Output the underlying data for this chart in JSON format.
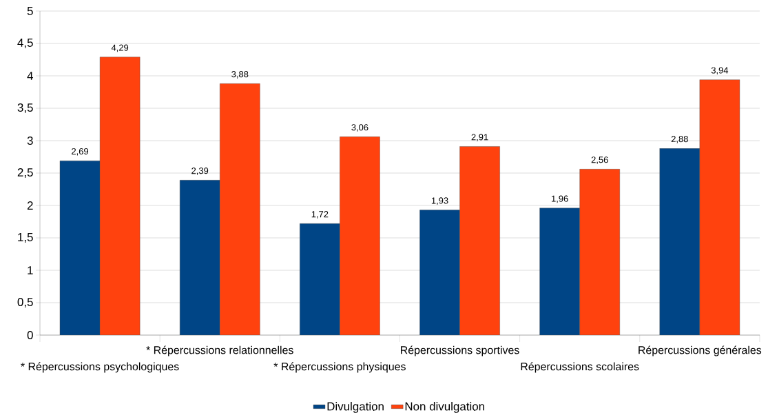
{
  "chart_data": {
    "type": "bar",
    "categories": [
      "* Répercussions psychologiques",
      "* Répercussions relationnelles",
      "* Répercussions physiques",
      "Répercussions sportives",
      "Répercussions scolaires",
      "Répercussions générales"
    ],
    "series": [
      {
        "name": "Divulgation",
        "color": "#004586",
        "values": [
          2.69,
          2.39,
          1.72,
          1.93,
          1.96,
          2.88
        ],
        "value_labels": [
          "2,69",
          "2,39",
          "1,72",
          "1,93",
          "1,96",
          "2,88"
        ]
      },
      {
        "name": "Non divulgation",
        "color": "#ff420e",
        "values": [
          4.29,
          3.88,
          3.06,
          2.91,
          2.56,
          3.94
        ],
        "value_labels": [
          "4,29",
          "3,88",
          "3,06",
          "2,91",
          "2,56",
          "3,94"
        ]
      }
    ],
    "ylim": [
      0,
      5
    ],
    "yticks": [
      0,
      {
        "value": 0.5,
        "label": "0,5"
      },
      1,
      {
        "value": 1.5,
        "label": "1,5"
      },
      2,
      {
        "value": 2.5,
        "label": "2,5"
      },
      3,
      {
        "value": 3.5,
        "label": "3,5"
      },
      4,
      {
        "value": 4.5,
        "label": "4,5"
      },
      5
    ],
    "grid": "y",
    "legend": "bottom"
  }
}
